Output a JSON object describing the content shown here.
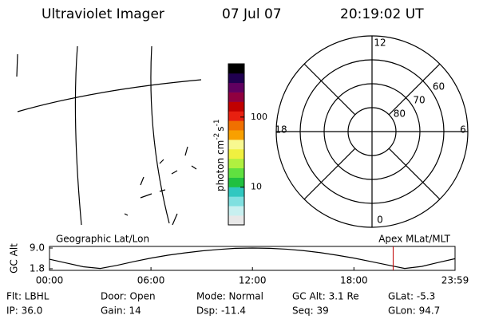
{
  "header": {
    "title": "Ultraviolet Imager",
    "date": "07 Jul 07",
    "time": "20:19:02 UT"
  },
  "colorbar": {
    "label": [
      "photon cm",
      "-2",
      "s",
      "-1"
    ],
    "log_scale": true,
    "lim": [
      2.9,
      575
    ],
    "ticks": [
      10,
      100
    ],
    "colors": [
      "#e8e8e8",
      "#c8f0f0",
      "#80e0e0",
      "#30c8c0",
      "#20c040",
      "#60e040",
      "#b0f040",
      "#f0f040",
      "#f8f890",
      "#f8a000",
      "#f07000",
      "#e82010",
      "#c00000",
      "#900040",
      "#600060",
      "#200050",
      "#000000"
    ]
  },
  "polar": {
    "rlim": [
      90,
      50
    ],
    "lat_labels": [
      80,
      70,
      60
    ],
    "mlt_labels": [
      12,
      6,
      0,
      18
    ]
  },
  "altitude_plot": {
    "ylabel": "GC Alt",
    "left_label": "Geographic Lat/Lon",
    "right_label": "Apex MLat/MLT",
    "x": [
      0,
      1,
      2,
      3,
      4,
      5,
      6,
      7,
      8,
      9,
      10,
      11,
      12,
      13,
      14,
      15,
      16,
      17,
      18,
      19,
      20,
      21,
      22,
      23,
      23.98
    ],
    "values": [
      5.1,
      3.8,
      2.5,
      1.9,
      3.0,
      4.3,
      5.5,
      6.5,
      7.3,
      8.0,
      8.5,
      8.9,
      9.0,
      8.9,
      8.6,
      8.1,
      7.4,
      6.5,
      5.5,
      4.3,
      3.1,
      1.9,
      2.6,
      4.0,
      5.3
    ],
    "color": "#000000",
    "marker_x": 20.32,
    "marker_color": "#c00000",
    "xlim": [
      0,
      23.98
    ],
    "ylim": [
      1.8,
      9.0
    ],
    "xticks": [
      {
        "value": 0,
        "label": "00:00"
      },
      {
        "value": 6,
        "label": "06:00"
      },
      {
        "value": 12,
        "label": "12:00"
      },
      {
        "value": 18,
        "label": "18:00"
      },
      {
        "value": 23.98,
        "label": "23:59"
      }
    ],
    "yticks": [
      {
        "value": 9,
        "label": "9.0"
      },
      1.8
    ]
  },
  "info": {
    "rows": [
      [
        "Flt: LBHL",
        "Door: Open",
        "Mode: Normal",
        "GC Alt: 3.1 Re",
        "GLat: -5.3"
      ],
      [
        "IP: 36.0",
        "Gain: 14",
        "Dsp: -11.4",
        "Seq: 39",
        "GLon: 94.7"
      ]
    ]
  }
}
